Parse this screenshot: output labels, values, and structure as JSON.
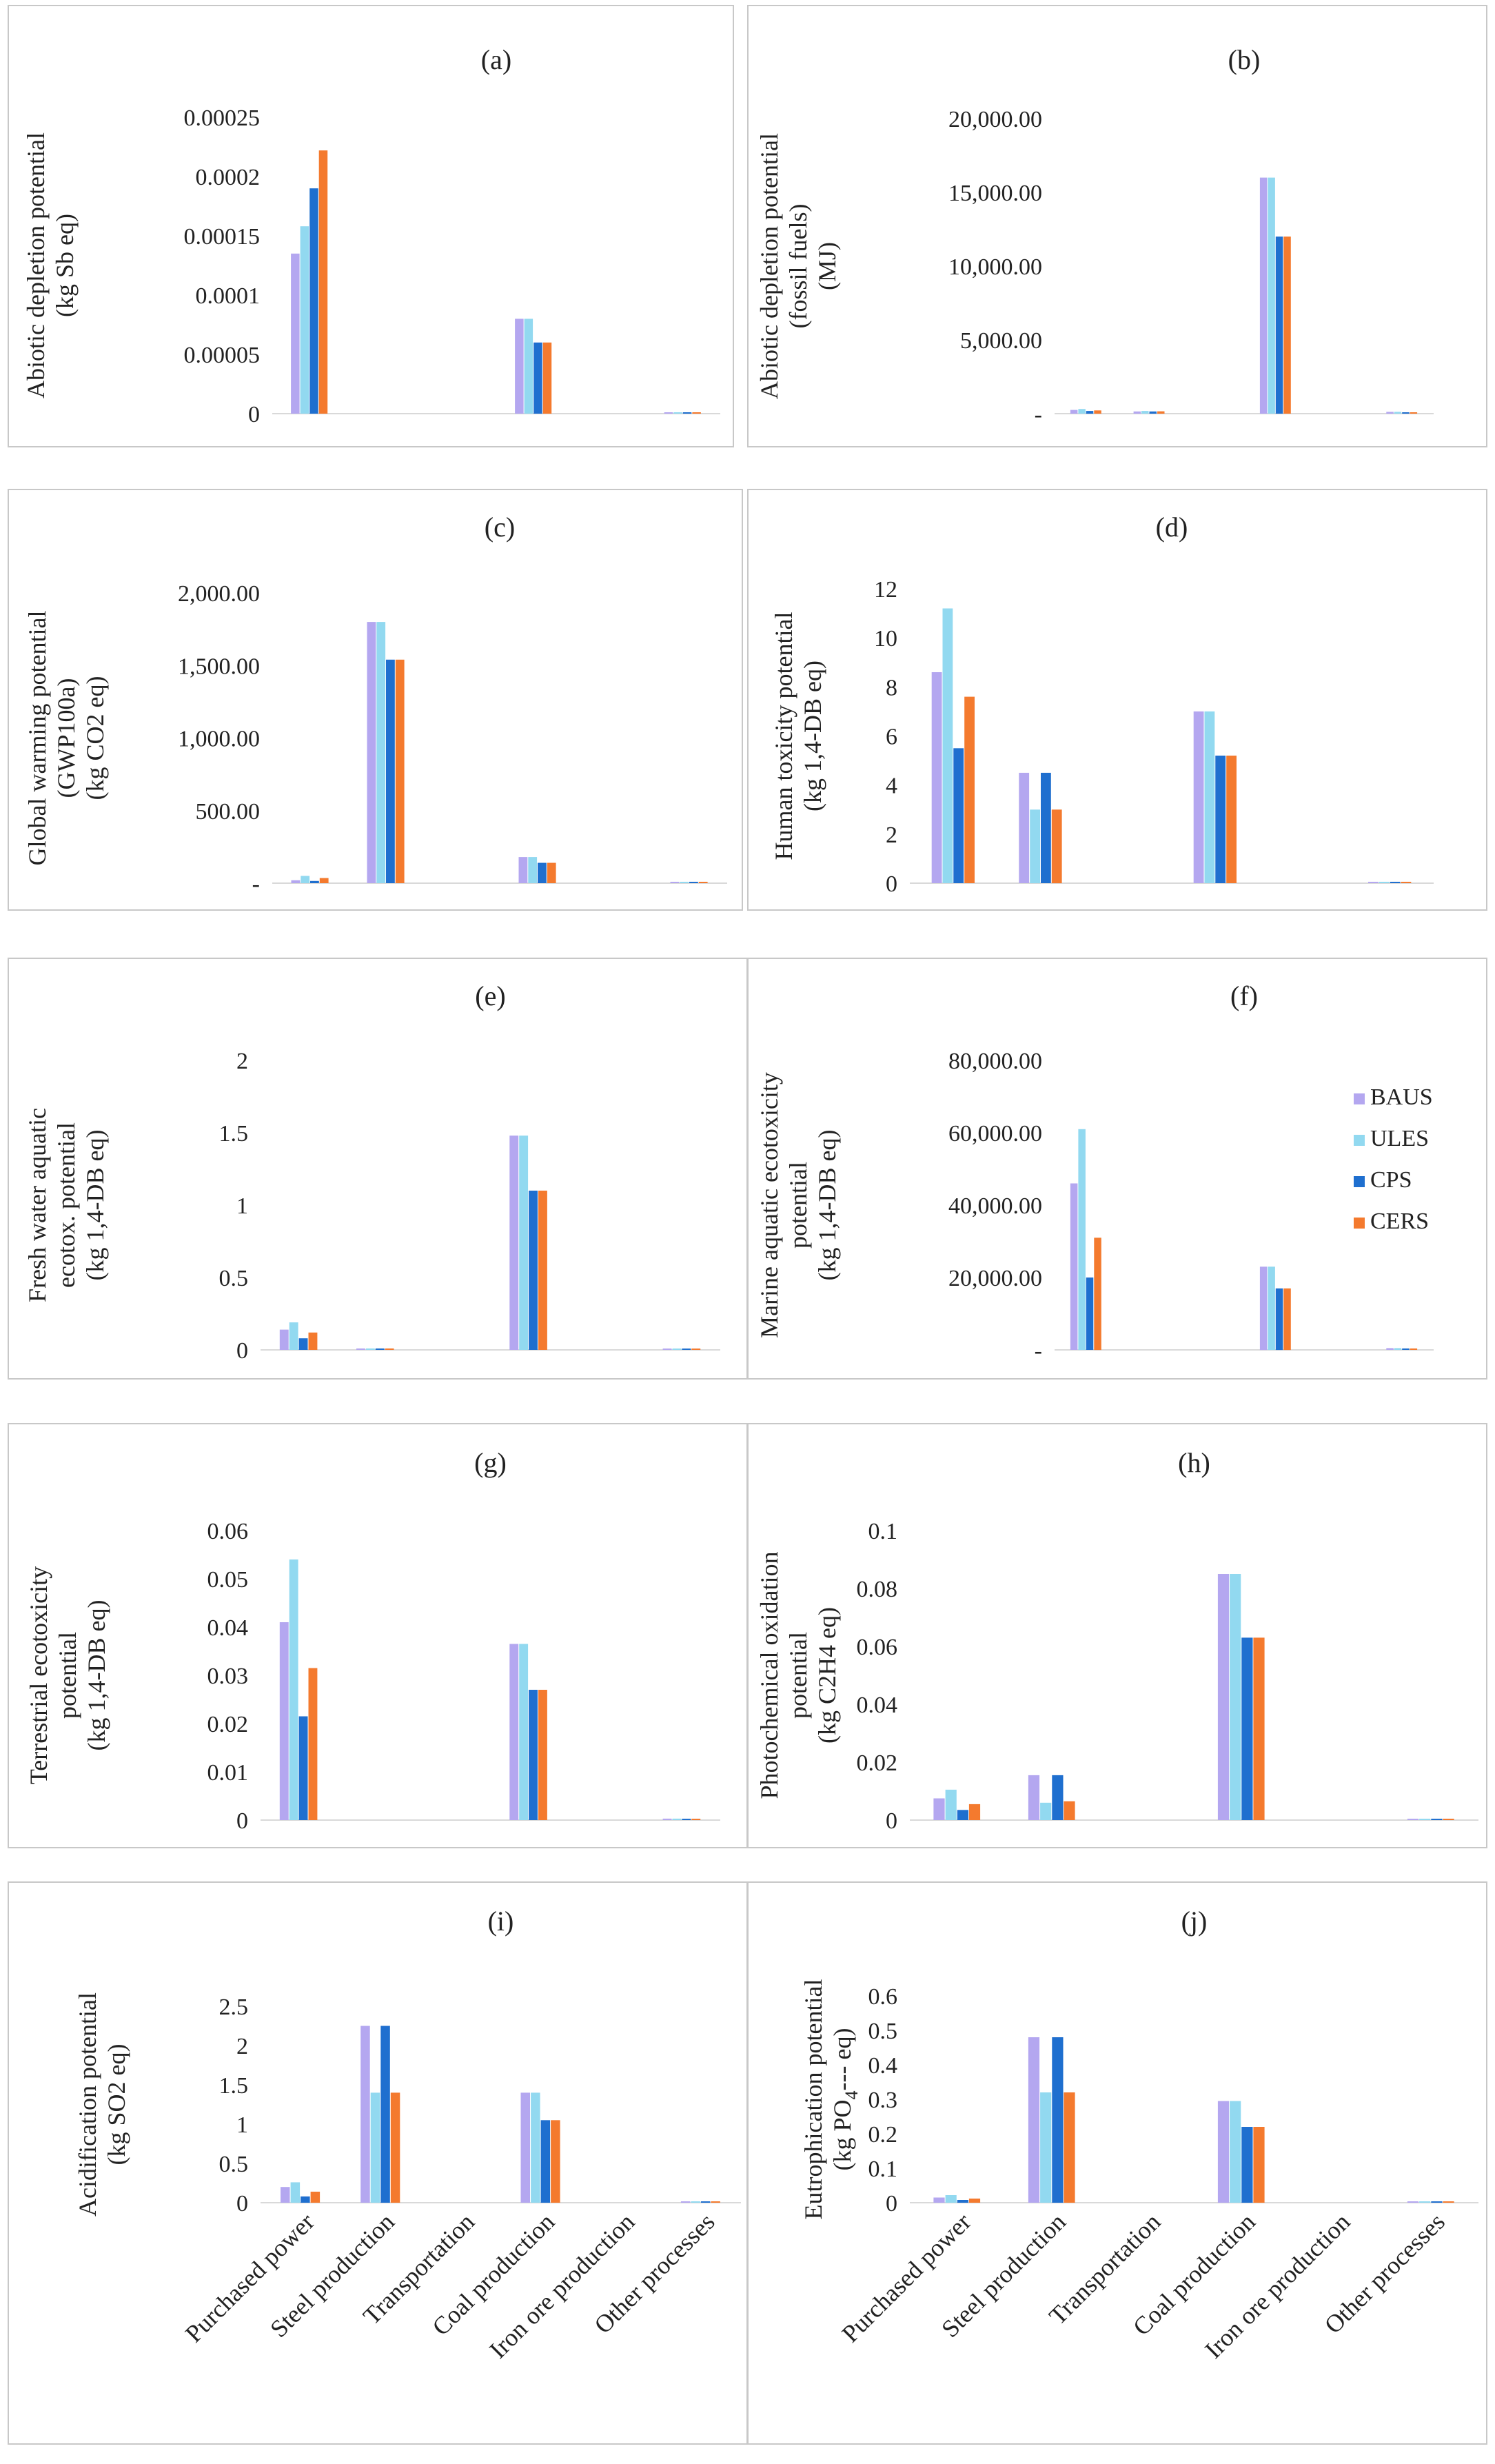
{
  "legend": [
    {
      "name": "BAUS",
      "color": "#b4a7f0"
    },
    {
      "name": "ULES",
      "color": "#92d9f0"
    },
    {
      "name": "CPS",
      "color": "#1f6fcf"
    },
    {
      "name": "CERS",
      "color": "#f47a2e"
    }
  ],
  "categories": [
    "Purchased power",
    "Steel production",
    "Transportation",
    "Coal production",
    "Iron ore production",
    "Other processes"
  ],
  "chart_data": [
    {
      "type": "bar",
      "title": "(a)",
      "ylabel": [
        "Abiotic depletion potential",
        "(kg Sb eq)"
      ],
      "categories": [
        "Purchased power",
        "Steel production",
        "Transportation",
        "Coal production",
        "Iron ore production",
        "Other processes"
      ],
      "ylim": [
        0,
        0.00025
      ],
      "yticks": [
        0,
        5e-05,
        0.0001,
        0.00015,
        0.0002,
        0.00025
      ],
      "ytick_labels": [
        "0",
        "0.00005",
        "0.0001",
        "0.00015",
        "0.0002",
        "0.00025"
      ],
      "series": [
        {
          "name": "BAUS",
          "values": [
            0.000135,
            0,
            0,
            8e-05,
            0,
            1e-06
          ]
        },
        {
          "name": "ULES",
          "values": [
            0.000158,
            0,
            0,
            8e-05,
            0,
            1e-06
          ]
        },
        {
          "name": "CPS",
          "values": [
            0.00019,
            0,
            0,
            6e-05,
            0,
            1e-06
          ]
        },
        {
          "name": "CERS",
          "values": [
            0.000222,
            0,
            0,
            6e-05,
            0,
            1e-06
          ]
        }
      ]
    },
    {
      "type": "bar",
      "title": "(b)",
      "ylabel": [
        "Abiotic depletion potential",
        "(fossil fuels)",
        "(MJ)"
      ],
      "categories": [
        "Purchased power",
        "Steel production",
        "Transportation",
        "Coal production",
        "Iron ore production",
        "Other processes"
      ],
      "ylim": [
        0,
        20000
      ],
      "yticks": [
        0,
        5000,
        10000,
        15000,
        20000
      ],
      "ytick_labels": [
        "-",
        "5,000.00",
        "10,000.00",
        "15,000.00",
        "20,000.00"
      ],
      "series": [
        {
          "name": "BAUS",
          "values": [
            250,
            150,
            0,
            16000,
            0,
            120
          ]
        },
        {
          "name": "ULES",
          "values": [
            320,
            180,
            0,
            16000,
            0,
            120
          ]
        },
        {
          "name": "CPS",
          "values": [
            180,
            150,
            0,
            12000,
            0,
            80
          ]
        },
        {
          "name": "CERS",
          "values": [
            220,
            160,
            0,
            12000,
            0,
            80
          ]
        }
      ]
    },
    {
      "type": "bar",
      "title": "(c)",
      "ylabel": [
        "Global warming potential",
        "(GWP100a)",
        "(kg CO2 eq)"
      ],
      "categories": [
        "Purchased power",
        "Steel production",
        "Transportation",
        "Coal production",
        "Iron ore production",
        "Other processes"
      ],
      "ylim": [
        0,
        2000
      ],
      "yticks": [
        0,
        500,
        1000,
        1500,
        2000
      ],
      "ytick_labels": [
        "-",
        "500.00",
        "1,000.00",
        "1,500.00",
        "2,000.00"
      ],
      "series": [
        {
          "name": "BAUS",
          "values": [
            20,
            1800,
            0,
            180,
            0,
            8
          ]
        },
        {
          "name": "ULES",
          "values": [
            50,
            1800,
            0,
            180,
            0,
            8
          ]
        },
        {
          "name": "CPS",
          "values": [
            15,
            1540,
            0,
            140,
            0,
            6
          ]
        },
        {
          "name": "CERS",
          "values": [
            35,
            1540,
            0,
            140,
            0,
            6
          ]
        }
      ]
    },
    {
      "type": "bar",
      "title": "(d)",
      "ylabel": [
        "Human toxicity potential",
        "(kg 1,4-DB eq)"
      ],
      "categories": [
        "Purchased power",
        "Steel production",
        "Transportation",
        "Coal production",
        "Iron ore production",
        "Other processes"
      ],
      "ylim": [
        0,
        12
      ],
      "yticks": [
        0,
        2,
        4,
        6,
        8,
        10,
        12
      ],
      "ytick_labels": [
        "0",
        "2",
        "4",
        "6",
        "8",
        "10",
        "12"
      ],
      "series": [
        {
          "name": "BAUS",
          "values": [
            8.6,
            4.5,
            0,
            7.0,
            0,
            0.02
          ]
        },
        {
          "name": "ULES",
          "values": [
            11.2,
            3.0,
            0,
            7.0,
            0,
            0.02
          ]
        },
        {
          "name": "CPS",
          "values": [
            5.5,
            4.5,
            0,
            5.2,
            0,
            0.02
          ]
        },
        {
          "name": "CERS",
          "values": [
            7.6,
            3.0,
            0,
            5.2,
            0,
            0.02
          ]
        }
      ]
    },
    {
      "type": "bar",
      "title": "(e)",
      "ylabel": [
        "Fresh water aquatic",
        "ecotox. potential",
        "(kg 1,4-DB eq)"
      ],
      "categories": [
        "Purchased power",
        "Steel production",
        "Transportation",
        "Coal production",
        "Iron ore production",
        "Other processes"
      ],
      "ylim": [
        0,
        2
      ],
      "yticks": [
        0,
        0.5,
        1,
        1.5,
        2
      ],
      "ytick_labels": [
        "0",
        "0.5",
        "1",
        "1.5",
        "2"
      ],
      "series": [
        {
          "name": "BAUS",
          "values": [
            0.14,
            0.01,
            0,
            1.48,
            0,
            0.004
          ]
        },
        {
          "name": "ULES",
          "values": [
            0.19,
            0.01,
            0,
            1.48,
            0,
            0.004
          ]
        },
        {
          "name": "CPS",
          "values": [
            0.08,
            0.01,
            0,
            1.1,
            0,
            0.003
          ]
        },
        {
          "name": "CERS",
          "values": [
            0.12,
            0.01,
            0,
            1.1,
            0,
            0.003
          ]
        }
      ]
    },
    {
      "type": "bar",
      "title": "(f)",
      "ylabel": [
        "Marine aquatic ecotoxicity",
        "potential",
        "(kg 1,4-DB eq)"
      ],
      "categories": [
        "Purchased power",
        "Steel production",
        "Transportation",
        "Coal production",
        "Iron ore production",
        "Other processes"
      ],
      "ylim": [
        0,
        80000
      ],
      "yticks": [
        0,
        20000,
        40000,
        60000,
        80000
      ],
      "ytick_labels": [
        "-",
        "20,000.00",
        "40,000.00",
        "60,000.00",
        "80,000.00"
      ],
      "series": [
        {
          "name": "BAUS",
          "values": [
            46000,
            0,
            0,
            23000,
            0,
            500
          ]
        },
        {
          "name": "ULES",
          "values": [
            61000,
            0,
            0,
            23000,
            0,
            500
          ]
        },
        {
          "name": "CPS",
          "values": [
            20000,
            0,
            0,
            17000,
            0,
            400
          ]
        },
        {
          "name": "CERS",
          "values": [
            31000,
            0,
            0,
            17000,
            0,
            400
          ]
        }
      ]
    },
    {
      "type": "bar",
      "title": "(g)",
      "ylabel": [
        "Terrestrial ecotoxicity",
        "potential",
        "(kg 1,4-DB eq)"
      ],
      "categories": [
        "Purchased power",
        "Steel production",
        "Transportation",
        "Coal production",
        "Iron ore production",
        "Other processes"
      ],
      "ylim": [
        0,
        0.06
      ],
      "yticks": [
        0,
        0.01,
        0.02,
        0.03,
        0.04,
        0.05,
        0.06
      ],
      "ytick_labels": [
        "0",
        "0.01",
        "0.02",
        "0.03",
        "0.04",
        "0.05",
        "0.06"
      ],
      "series": [
        {
          "name": "BAUS",
          "values": [
            0.041,
            0,
            0,
            0.0365,
            0,
            0.0003
          ]
        },
        {
          "name": "ULES",
          "values": [
            0.054,
            0,
            0,
            0.0365,
            0,
            0.0003
          ]
        },
        {
          "name": "CPS",
          "values": [
            0.0215,
            0,
            0,
            0.027,
            0,
            0.0002
          ]
        },
        {
          "name": "CERS",
          "values": [
            0.0315,
            0,
            0,
            0.027,
            0,
            0.0002
          ]
        }
      ]
    },
    {
      "type": "bar",
      "title": "(h)",
      "ylabel": [
        "Photochemical oxidation",
        "potential",
        "(kg C2H4 eq)"
      ],
      "categories": [
        "Purchased power",
        "Steel production",
        "Transportation",
        "Coal production",
        "Iron ore production",
        "Other processes"
      ],
      "ylim": [
        0,
        0.1
      ],
      "yticks": [
        0,
        0.02,
        0.04,
        0.06,
        0.08,
        0.1
      ],
      "ytick_labels": [
        "0",
        "0.02",
        "0.04",
        "0.06",
        "0.08",
        "0.1"
      ],
      "series": [
        {
          "name": "BAUS",
          "values": [
            0.0075,
            0.0155,
            0,
            0.085,
            0,
            0.0004
          ]
        },
        {
          "name": "ULES",
          "values": [
            0.0105,
            0.006,
            0,
            0.085,
            0,
            0.0004
          ]
        },
        {
          "name": "CPS",
          "values": [
            0.0035,
            0.0155,
            0,
            0.063,
            0,
            0.0003
          ]
        },
        {
          "name": "CERS",
          "values": [
            0.0055,
            0.0065,
            0,
            0.063,
            0,
            0.0003
          ]
        }
      ]
    },
    {
      "type": "bar",
      "title": "(i)",
      "ylabel": [
        "Acidification potential",
        "(kg SO2 eq)"
      ],
      "categories": [
        "Purchased power",
        "Steel production",
        "Transportation",
        "Coal production",
        "Iron ore production",
        "Other processes"
      ],
      "ylim": [
        0,
        2.5
      ],
      "yticks": [
        0,
        0.5,
        1,
        1.5,
        2,
        2.5
      ],
      "ytick_labels": [
        "0",
        "0.5",
        "1",
        "1.5",
        "2",
        "2.5"
      ],
      "series": [
        {
          "name": "BAUS",
          "values": [
            0.2,
            2.25,
            0,
            1.4,
            0,
            0.005
          ]
        },
        {
          "name": "ULES",
          "values": [
            0.26,
            1.4,
            0,
            1.4,
            0,
            0.005
          ]
        },
        {
          "name": "CPS",
          "values": [
            0.08,
            2.25,
            0,
            1.05,
            0,
            0.004
          ]
        },
        {
          "name": "CERS",
          "values": [
            0.14,
            1.4,
            0,
            1.05,
            0,
            0.004
          ]
        }
      ]
    },
    {
      "type": "bar",
      "title": "(j)",
      "ylabel": [
        "Eutrophication potential",
        "(kg PO",
        "4",
        "--- eq)"
      ],
      "categories": [
        "Purchased power",
        "Steel production",
        "Transportation",
        "Coal production",
        "Iron ore production",
        "Other processes"
      ],
      "ylim": [
        0,
        0.6
      ],
      "yticks": [
        0,
        0.1,
        0.2,
        0.3,
        0.4,
        0.5,
        0.6
      ],
      "ytick_labels": [
        "0",
        "0.1",
        "0.2",
        "0.3",
        "0.4",
        "0.5",
        "0.6"
      ],
      "series": [
        {
          "name": "BAUS",
          "values": [
            0.015,
            0.48,
            0,
            0.295,
            0,
            0.001
          ]
        },
        {
          "name": "ULES",
          "values": [
            0.022,
            0.32,
            0,
            0.295,
            0,
            0.001
          ]
        },
        {
          "name": "CPS",
          "values": [
            0.008,
            0.48,
            0,
            0.22,
            0,
            0.001
          ]
        },
        {
          "name": "CERS",
          "values": [
            0.012,
            0.32,
            0,
            0.22,
            0,
            0.001
          ]
        }
      ]
    }
  ]
}
